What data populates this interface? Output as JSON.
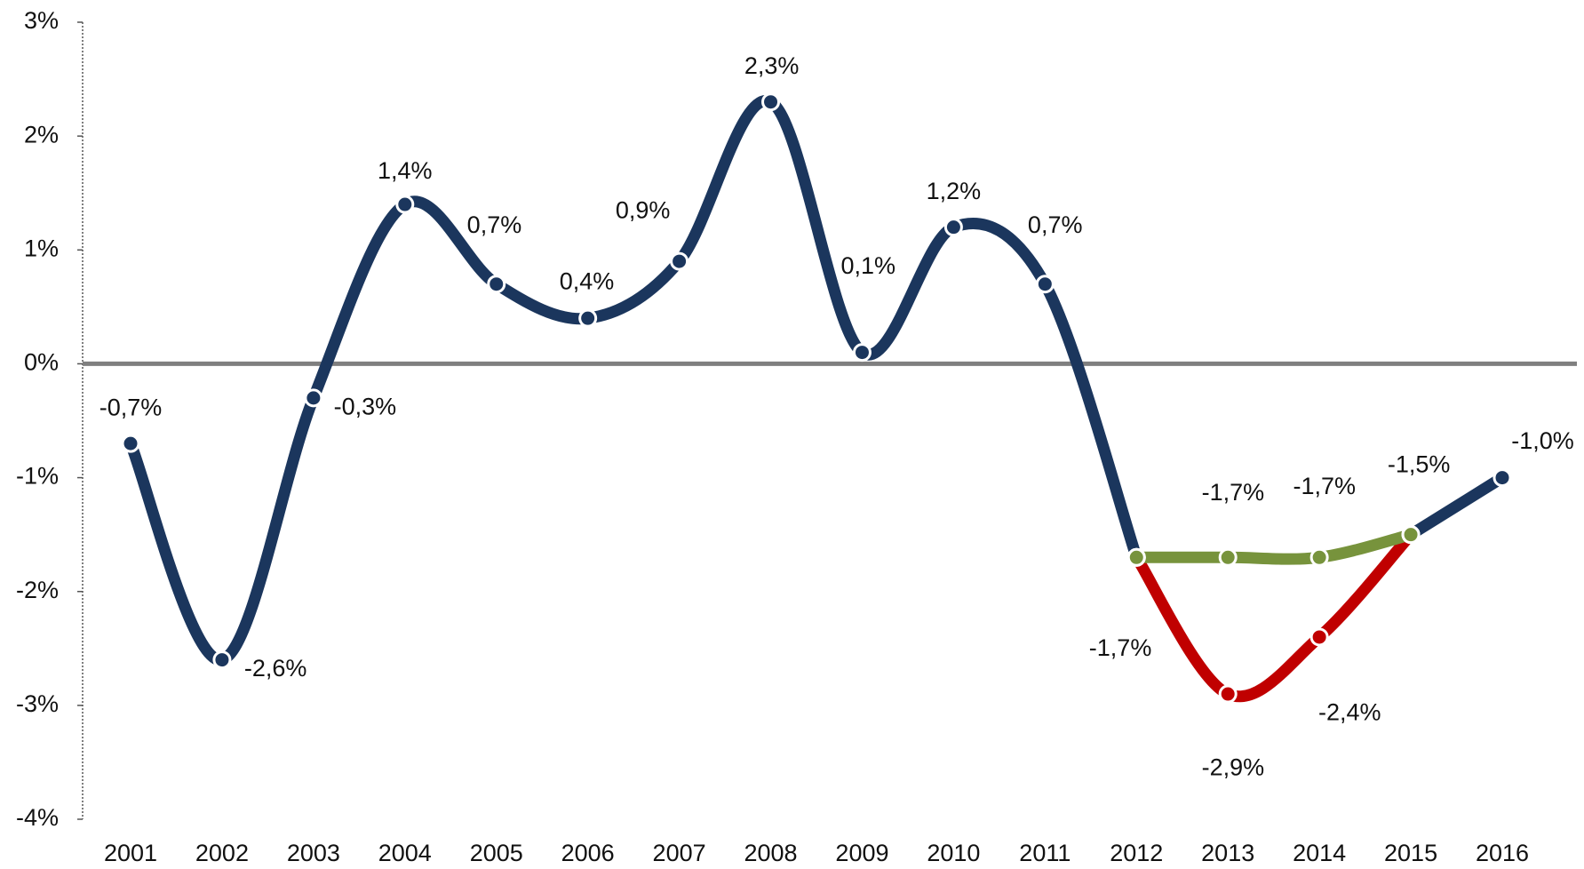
{
  "chart_data": {
    "type": "line",
    "categories": [
      "2001",
      "2002",
      "2003",
      "2004",
      "2005",
      "2006",
      "2007",
      "2008",
      "2009",
      "2010",
      "2011",
      "2012",
      "2013",
      "2014",
      "2015",
      "2016"
    ],
    "series": [
      {
        "color": "#1b365d",
        "values": [
          -0.7,
          -2.6,
          -0.3,
          1.4,
          0.7,
          0.4,
          0.9,
          2.3,
          0.1,
          1.2,
          0.7,
          -1.7,
          null,
          null,
          -1.5,
          -1.0
        ],
        "value_labels": [
          "-0,7%",
          "-2,6%",
          "-0,3%",
          "1,4%",
          "0,7%",
          "0,4%",
          "0,9%",
          "2,3%",
          "0,1%",
          "1,2%",
          "0,7%",
          "-1,7%",
          null,
          null,
          "-1,5%",
          "-1,0%"
        ]
      },
      {
        "color": "#c00000",
        "values": [
          null,
          null,
          null,
          null,
          null,
          null,
          null,
          null,
          null,
          null,
          null,
          -1.7,
          -2.9,
          -2.4,
          -1.5,
          null
        ],
        "value_labels": [
          null,
          null,
          null,
          null,
          null,
          null,
          null,
          null,
          null,
          null,
          null,
          null,
          "-2,9%",
          "-2,4%",
          null,
          null
        ]
      },
      {
        "color": "#77933c",
        "values": [
          null,
          null,
          null,
          null,
          null,
          null,
          null,
          null,
          null,
          null,
          null,
          -1.7,
          -1.7,
          -1.7,
          -1.5,
          null
        ],
        "value_labels": [
          null,
          null,
          null,
          null,
          null,
          null,
          null,
          null,
          null,
          null,
          null,
          null,
          "-1,7%",
          "-1,7%",
          null,
          null
        ]
      }
    ],
    "ylim": [
      -4,
      3
    ],
    "yticks": [
      {
        "value": -4,
        "label": "-4%"
      },
      {
        "value": -3,
        "label": "-3%"
      },
      {
        "value": -2,
        "label": "-2%"
      },
      {
        "value": -1,
        "label": "-1%"
      },
      {
        "value": 0,
        "label": "0%"
      },
      {
        "value": 1,
        "label": "1%"
      },
      {
        "value": 2,
        "label": "2%"
      },
      {
        "value": 3,
        "label": "3%"
      }
    ],
    "grid": false
  }
}
